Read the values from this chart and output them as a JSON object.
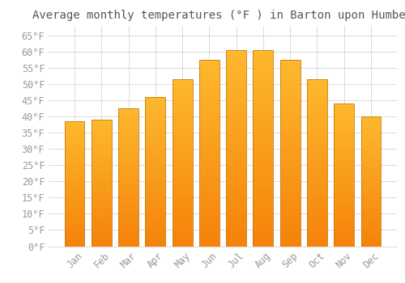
{
  "title": "Average monthly temperatures (°F ) in Barton upon Humber",
  "months": [
    "Jan",
    "Feb",
    "Mar",
    "Apr",
    "May",
    "Jun",
    "Jul",
    "Aug",
    "Sep",
    "Oct",
    "Nov",
    "Dec"
  ],
  "values": [
    38.5,
    39.0,
    42.5,
    46.0,
    51.5,
    57.5,
    60.5,
    60.5,
    57.5,
    51.5,
    44.0,
    40.0
  ],
  "bar_color_top": "#FDB92E",
  "bar_color_bottom": "#F5820A",
  "bar_edge_color": "#C87A10",
  "background_color": "#FFFFFF",
  "grid_color": "#CCCCCC",
  "ylim": [
    0,
    68
  ],
  "yticks": [
    0,
    5,
    10,
    15,
    20,
    25,
    30,
    35,
    40,
    45,
    50,
    55,
    60,
    65
  ],
  "title_fontsize": 10,
  "tick_fontsize": 8.5,
  "title_color": "#555555",
  "tick_color": "#999999",
  "font_family": "monospace"
}
